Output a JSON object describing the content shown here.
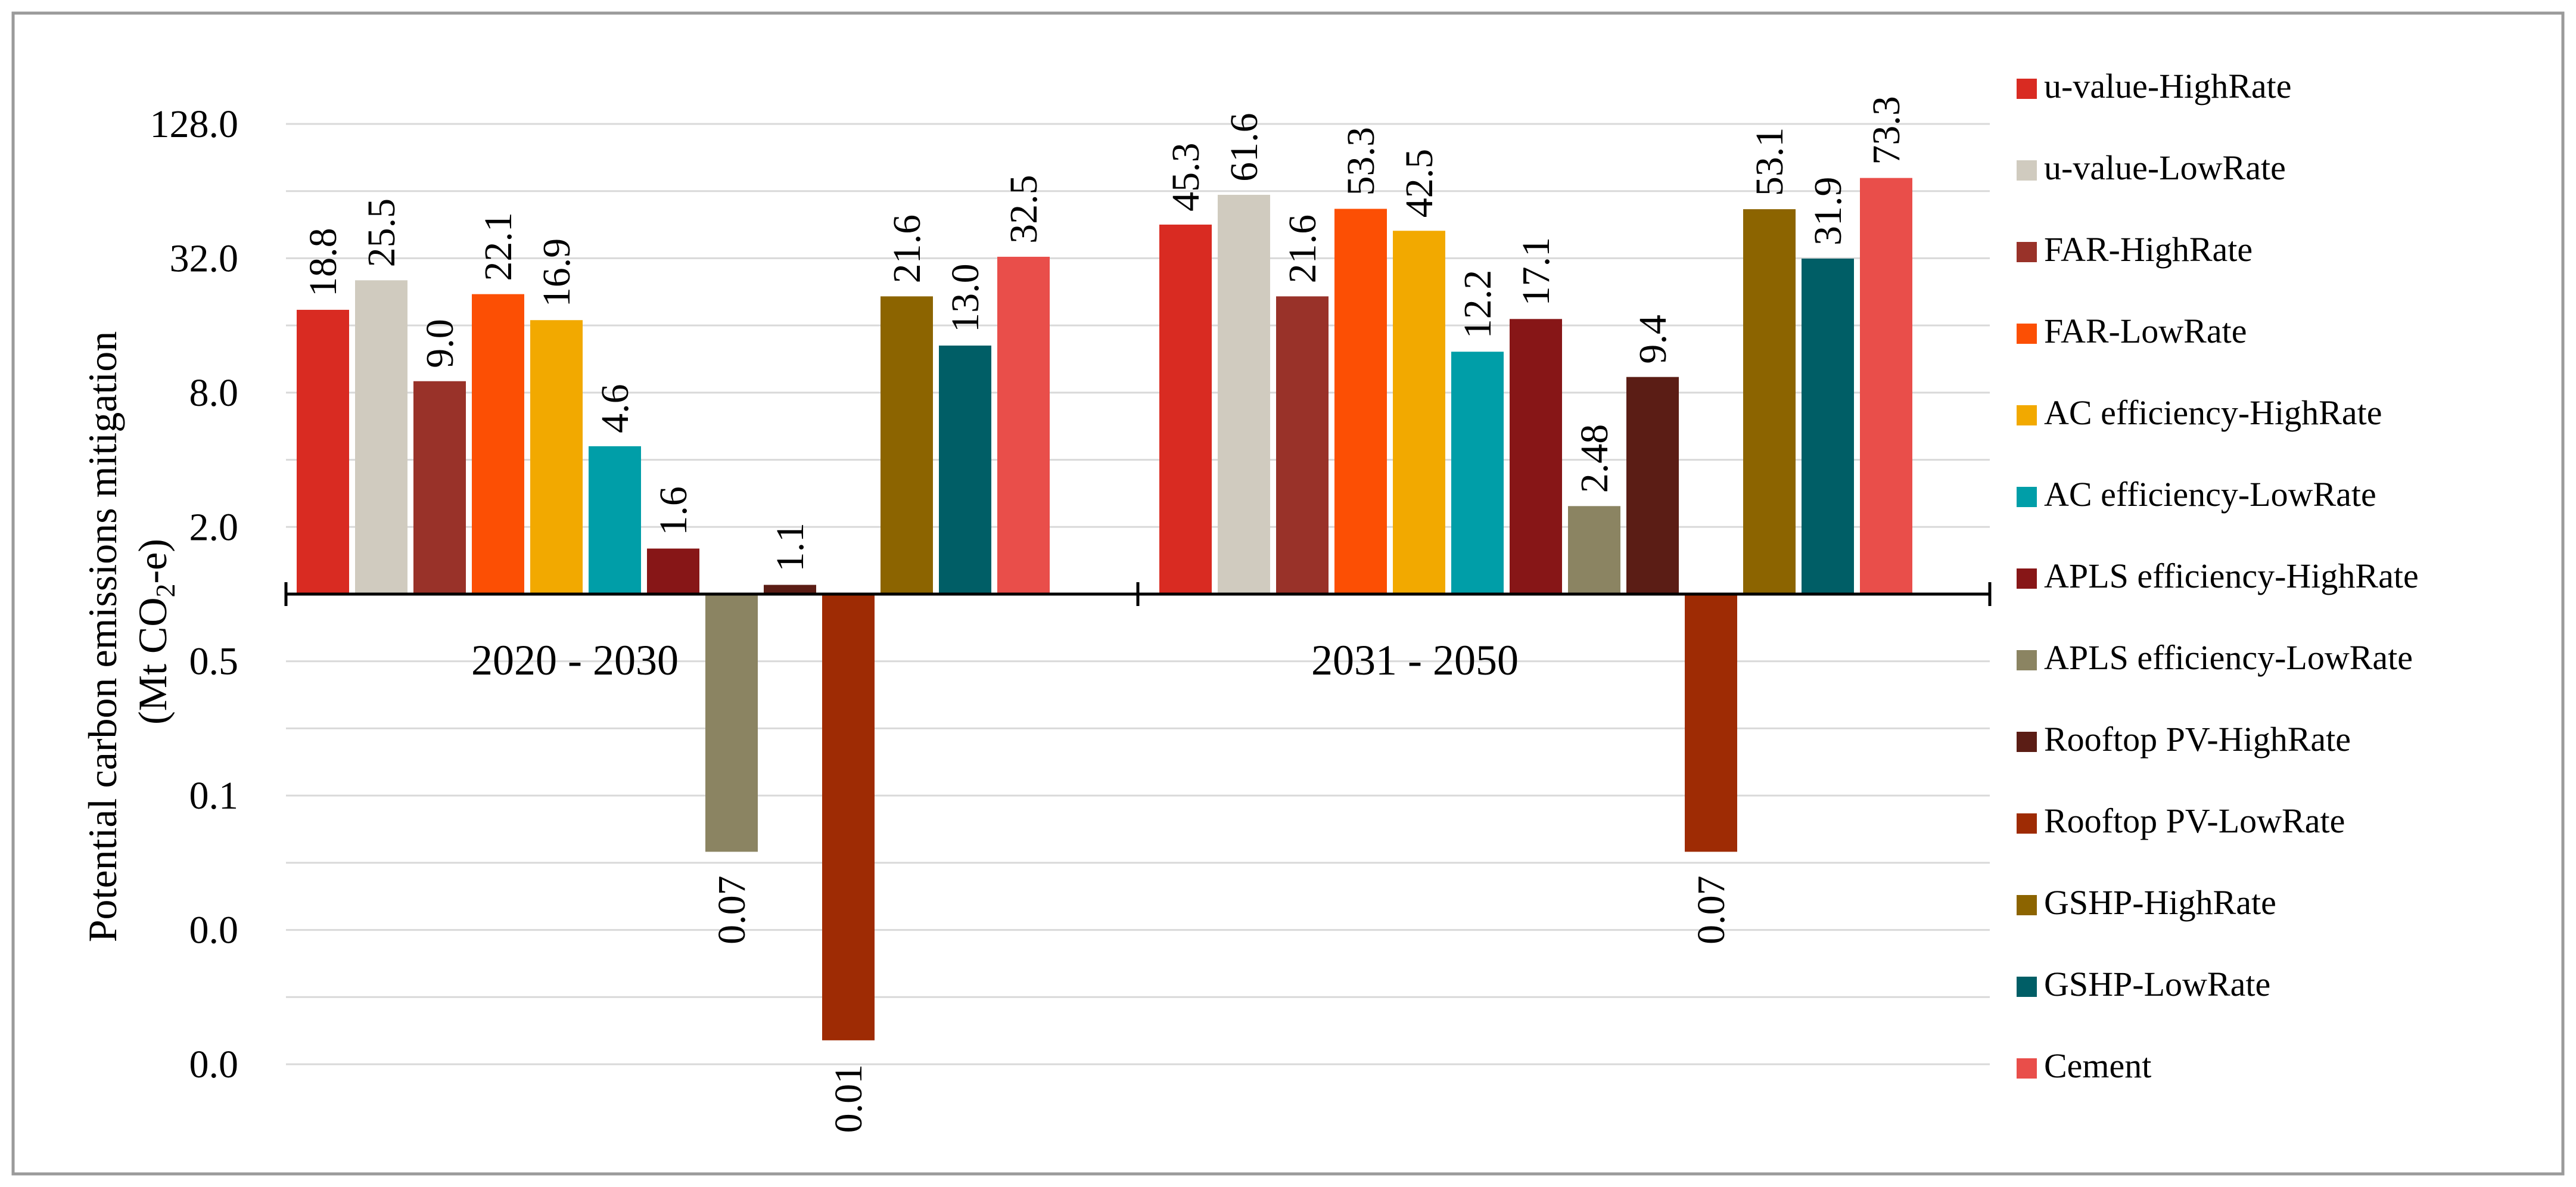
{
  "chart_data": {
    "type": "bar",
    "scale": "log4",
    "ylabel_line1": "Potential carbon emissions mitigation",
    "ylabel_line2_prefix": "(Mt CO",
    "ylabel_line2_sub": "2",
    "ylabel_line2_suffix": "-e)",
    "y_ticks": [
      {
        "value": 128,
        "label": "128.0"
      },
      {
        "value": 32,
        "label": "32.0"
      },
      {
        "value": 8,
        "label": "8.0"
      },
      {
        "value": 2,
        "label": "2.0"
      },
      {
        "value": 0.5,
        "label": "0.5"
      },
      {
        "value": 0.125,
        "label": "0.1"
      },
      {
        "value": 0.03125,
        "label": "0.0"
      },
      {
        "value": 0.0078125,
        "label": "0.0"
      }
    ],
    "ylim": [
      0.0078125,
      128
    ],
    "baseline_value": 1,
    "categories": [
      "2020 - 2030",
      "2031 - 2050"
    ],
    "series": [
      {
        "name": "u-value-HighRate",
        "color": "#d92b22",
        "values": [
          18.8,
          45.3
        ],
        "labels": [
          "18.8",
          "45.3"
        ]
      },
      {
        "name": "u-value-LowRate",
        "color": "#d0cbbf",
        "values": [
          25.5,
          61.6
        ],
        "labels": [
          "25.5",
          "61.6"
        ]
      },
      {
        "name": "FAR-HighRate",
        "color": "#993229",
        "values": [
          9.0,
          21.6
        ],
        "labels": [
          "9.0",
          "21.6"
        ]
      },
      {
        "name": "FAR-LowRate",
        "color": "#fc4f04",
        "values": [
          22.1,
          53.3
        ],
        "labels": [
          "22.1",
          "53.3"
        ]
      },
      {
        "name": "AC efficiency-HighRate",
        "color": "#f2a900",
        "values": [
          16.9,
          42.5
        ],
        "labels": [
          "16.9",
          "42.5"
        ]
      },
      {
        "name": "AC efficiency-LowRate",
        "color": "#009ea8",
        "values": [
          4.6,
          12.2
        ],
        "labels": [
          "4.6",
          "12.2"
        ]
      },
      {
        "name": "APLS efficiency-HighRate",
        "color": "#871617",
        "values": [
          1.6,
          17.1
        ],
        "labels": [
          "1.6",
          "17.1"
        ]
      },
      {
        "name": "APLS efficiency-LowRate",
        "color": "#8b8462",
        "values": [
          0.07,
          2.48
        ],
        "labels": [
          "0.07",
          "2.48"
        ]
      },
      {
        "name": "Rooftop PV-HighRate",
        "color": "#5b1d15",
        "values": [
          1.1,
          9.4
        ],
        "labels": [
          "1.1",
          "9.4"
        ]
      },
      {
        "name": "Rooftop PV-LowRate",
        "color": "#9e2b04",
        "values": [
          0.01,
          0.07
        ],
        "labels": [
          "0.01",
          "0.07"
        ]
      },
      {
        "name": "GSHP-HighRate",
        "color": "#8c6400",
        "values": [
          21.6,
          53.1
        ],
        "labels": [
          "21.6",
          "53.1"
        ]
      },
      {
        "name": "GSHP-LowRate",
        "color": "#005e66",
        "values": [
          13.0,
          31.9
        ],
        "labels": [
          "13.0",
          "31.9"
        ]
      },
      {
        "name": "Cement",
        "color": "#e94e4a",
        "values": [
          32.5,
          73.3
        ],
        "labels": [
          "32.5",
          "73.3"
        ]
      }
    ],
    "legend_position": "right",
    "grid": true
  }
}
